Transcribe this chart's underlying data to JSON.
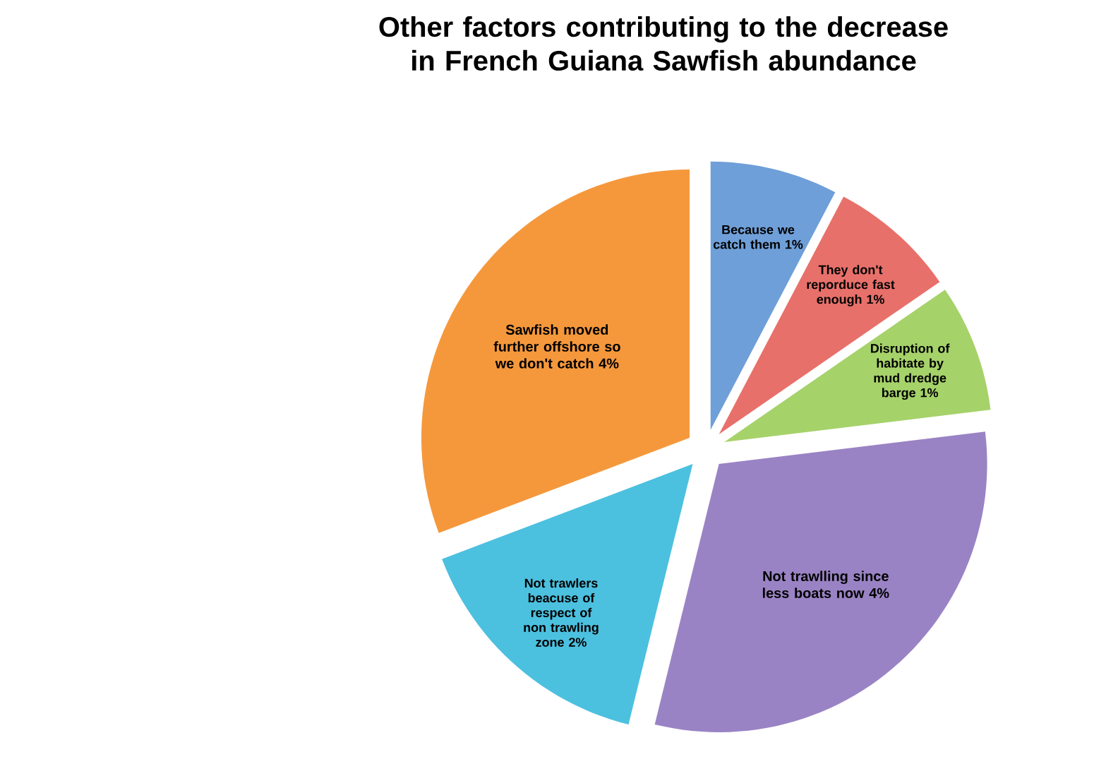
{
  "chart_data": {
    "type": "pie",
    "title": "Other factors contributing to the decrease in French Guiana Sawfish abundance",
    "categories": [
      "Because we catch them",
      "They don't reporduce fast enough",
      "Disruption of habitate by mud dredge barge",
      "Not trawlling since less boats now",
      "Not trawlers beacuse of respect of  non trawling zone",
      "Sawfish moved further offshore so we don't catch"
    ],
    "values": [
      1,
      1,
      1,
      4,
      2,
      4
    ],
    "value_labels": [
      "1%",
      "1%",
      "1%",
      "4%",
      "2%",
      "4%"
    ],
    "colors": [
      "#6f9fd8",
      "#e8706a",
      "#a6d26a",
      "#9a83c4",
      "#4cc0df",
      "#f5983c"
    ]
  }
}
